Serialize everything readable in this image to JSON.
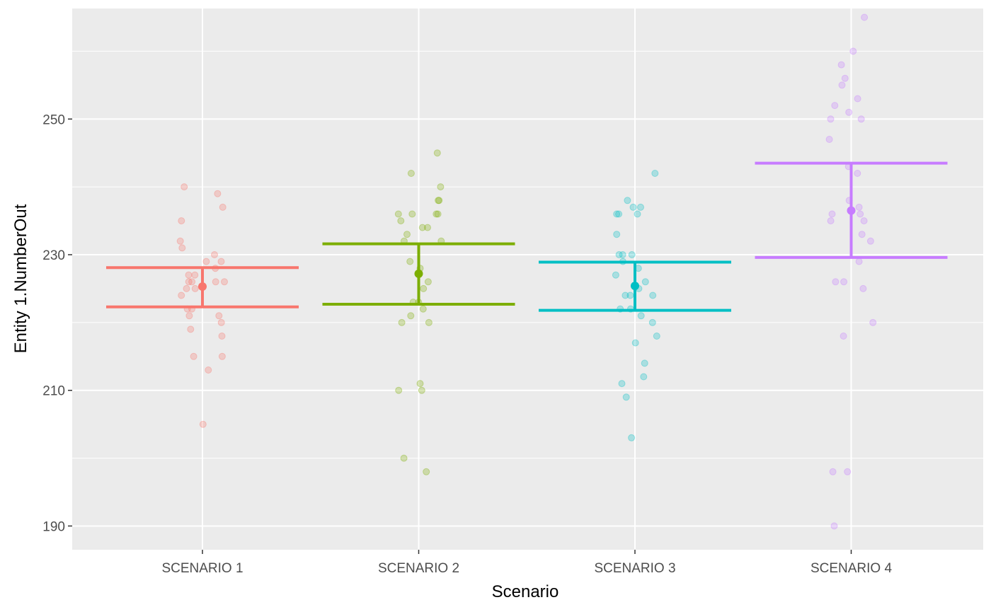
{
  "chart_data": {
    "type": "scatter",
    "subtype": "jittered points with mean and confidence interval error bars",
    "xlabel": "Scenario",
    "ylabel": "Entity 1.NumberOut",
    "categories": [
      "SCENARIO 1",
      "SCENARIO 2",
      "SCENARIO 3",
      "SCENARIO 4"
    ],
    "ylim": [
      186.5,
      266.3
    ],
    "yticks": [
      190,
      210,
      230,
      250
    ],
    "background_color": "#EBEBEB",
    "grid": true,
    "legend": "none",
    "series": [
      {
        "category": "SCENARIO 1",
        "color": "#F8766D",
        "mean": 225.3,
        "ci_low": 222.3,
        "ci_high": 228.1,
        "points": [
          240,
          239,
          237,
          235,
          232,
          231,
          230,
          229,
          229,
          228,
          227,
          227,
          226,
          226,
          226,
          225,
          225,
          224,
          222,
          222,
          221,
          221,
          220,
          219,
          218,
          215,
          215,
          213,
          205,
          226
        ]
      },
      {
        "category": "SCENARIO 2",
        "color": "#7CAE00",
        "mean": 227.2,
        "ci_low": 222.7,
        "ci_high": 231.6,
        "points": [
          245,
          242,
          240,
          238,
          238,
          236,
          236,
          236,
          236,
          235,
          234,
          234,
          233,
          232,
          232,
          229,
          228,
          226,
          225,
          223,
          223,
          222,
          221,
          220,
          220,
          211,
          210,
          210,
          200,
          198
        ]
      },
      {
        "category": "SCENARIO 3",
        "color": "#00BFC4",
        "mean": 225.4,
        "ci_low": 221.8,
        "ci_high": 228.9,
        "points": [
          242,
          238,
          237,
          237,
          236,
          236,
          236,
          233,
          230,
          230,
          230,
          229,
          228,
          227,
          226,
          225,
          224,
          224,
          224,
          222,
          222,
          221,
          220,
          218,
          217,
          214,
          212,
          211,
          209,
          203
        ]
      },
      {
        "category": "SCENARIO 4",
        "color": "#C77CFF",
        "mean": 236.5,
        "ci_low": 229.6,
        "ci_high": 243.5,
        "points": [
          265,
          260,
          258,
          256,
          255,
          253,
          252,
          251,
          250,
          250,
          247,
          243,
          242,
          238,
          237,
          236,
          236,
          235,
          235,
          233,
          232,
          229,
          226,
          226,
          225,
          220,
          218,
          198,
          198,
          190
        ]
      }
    ]
  }
}
